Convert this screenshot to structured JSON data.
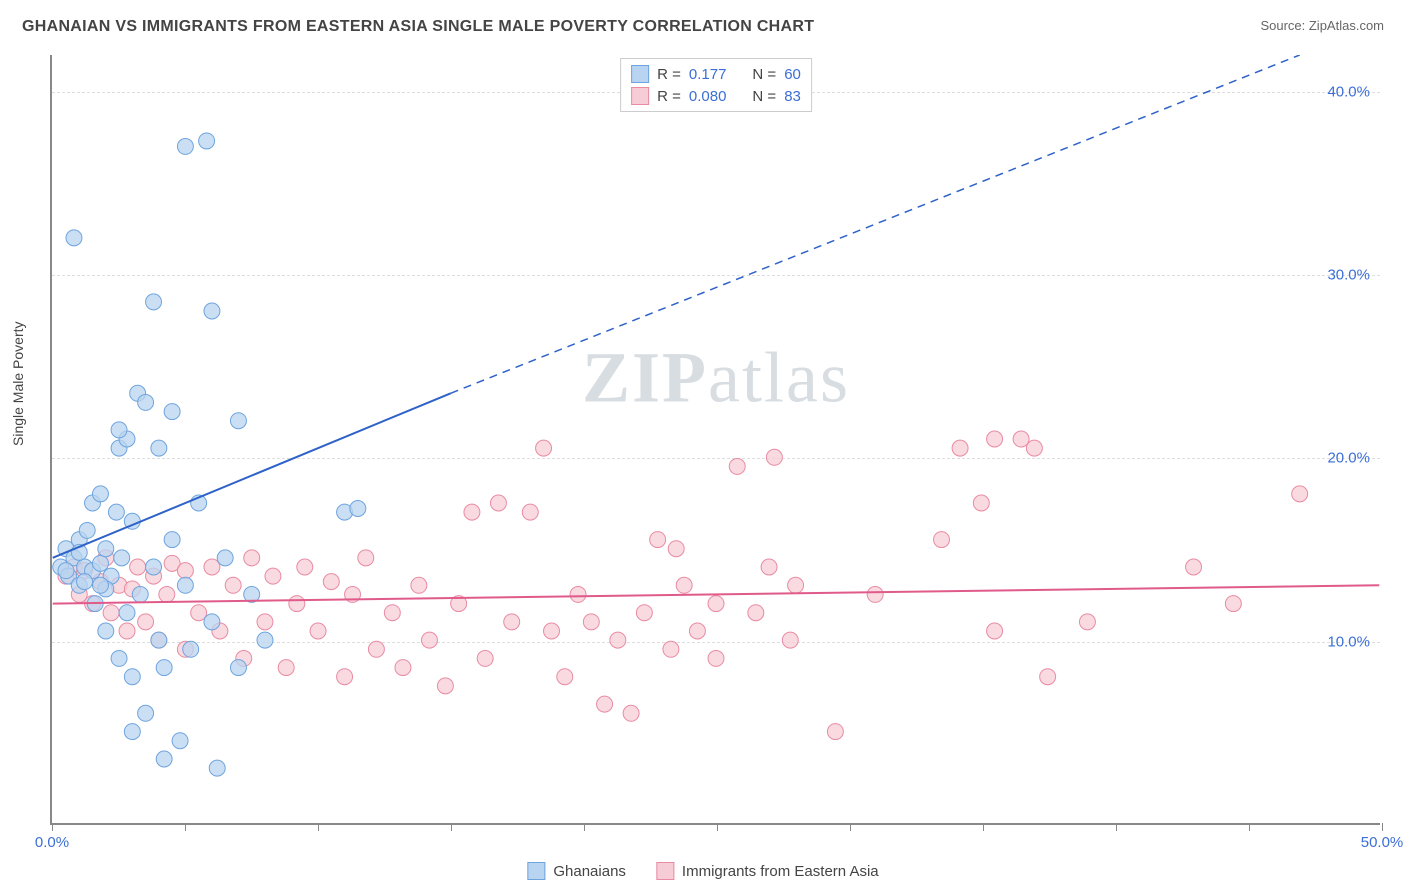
{
  "title": "GHANAIAN VS IMMIGRANTS FROM EASTERN ASIA SINGLE MALE POVERTY CORRELATION CHART",
  "source": "Source: ZipAtlas.com",
  "ylabel": "Single Male Poverty",
  "watermark_bold": "ZIP",
  "watermark_rest": "atlas",
  "chart": {
    "type": "scatter",
    "xlim": [
      0,
      50
    ],
    "ylim": [
      0,
      42
    ],
    "yticks": [
      10,
      20,
      30,
      40
    ],
    "ytick_labels": [
      "10.0%",
      "20.0%",
      "30.0%",
      "40.0%"
    ],
    "xticks": [
      0,
      5,
      10,
      15,
      20,
      25,
      30,
      35,
      40,
      45,
      50
    ],
    "xtick_labels": {
      "0": "0.0%",
      "50": "50.0%"
    },
    "grid_color": "#e4e4e4",
    "axis_color": "#888888",
    "background_color": "#ffffff",
    "series": [
      {
        "name": "Ghanaians",
        "color_fill": "#b9d4f0",
        "color_stroke": "#6ea4de",
        "marker_radius": 8,
        "R": "0.177",
        "N": "60",
        "trend": {
          "x1": 0,
          "y1": 14.5,
          "x2_solid": 15,
          "y2_solid": 23.5,
          "x2_dash": 47,
          "y2_dash": 42,
          "color": "#2e62c9",
          "width": 2
        },
        "points": [
          [
            0.3,
            14.0
          ],
          [
            0.5,
            15.0
          ],
          [
            0.6,
            13.5
          ],
          [
            0.8,
            14.5
          ],
          [
            1.0,
            13.0
          ],
          [
            1.0,
            15.5
          ],
          [
            1.2,
            14.0
          ],
          [
            1.3,
            16.0
          ],
          [
            1.5,
            13.8
          ],
          [
            1.5,
            17.5
          ],
          [
            1.6,
            12.0
          ],
          [
            1.8,
            14.2
          ],
          [
            1.8,
            18.0
          ],
          [
            2.0,
            10.5
          ],
          [
            2.0,
            15.0
          ],
          [
            2.2,
            13.5
          ],
          [
            2.4,
            17.0
          ],
          [
            2.5,
            9.0
          ],
          [
            2.5,
            20.5
          ],
          [
            2.6,
            14.5
          ],
          [
            2.8,
            11.5
          ],
          [
            2.8,
            21.0
          ],
          [
            3.0,
            8.0
          ],
          [
            3.0,
            16.5
          ],
          [
            3.2,
            23.5
          ],
          [
            3.3,
            12.5
          ],
          [
            3.5,
            23.0
          ],
          [
            3.5,
            6.0
          ],
          [
            3.8,
            14.0
          ],
          [
            3.8,
            28.5
          ],
          [
            4.0,
            10.0
          ],
          [
            4.0,
            20.5
          ],
          [
            4.2,
            8.5
          ],
          [
            4.5,
            15.5
          ],
          [
            4.5,
            22.5
          ],
          [
            4.8,
            4.5
          ],
          [
            5.0,
            13.0
          ],
          [
            5.0,
            37.0
          ],
          [
            5.2,
            9.5
          ],
          [
            5.5,
            17.5
          ],
          [
            5.8,
            37.3
          ],
          [
            6.0,
            11.0
          ],
          [
            6.0,
            28.0
          ],
          [
            6.2,
            3.0
          ],
          [
            6.5,
            14.5
          ],
          [
            7.0,
            8.5
          ],
          [
            7.0,
            22.0
          ],
          [
            7.5,
            12.5
          ],
          [
            8.0,
            10.0
          ],
          [
            0.8,
            32.0
          ],
          [
            2.5,
            21.5
          ],
          [
            2.0,
            12.8
          ],
          [
            1.0,
            14.8
          ],
          [
            1.2,
            13.2
          ],
          [
            0.5,
            13.8
          ],
          [
            1.8,
            13.0
          ],
          [
            11.0,
            17.0
          ],
          [
            11.5,
            17.2
          ],
          [
            3.0,
            5.0
          ],
          [
            4.2,
            3.5
          ]
        ]
      },
      {
        "name": "Immigants_EA",
        "label": "Immigrants from Eastern Asia",
        "color_fill": "#f6cdd6",
        "color_stroke": "#e98ba3",
        "marker_radius": 8,
        "R": "0.080",
        "N": "83",
        "trend": {
          "x1": 0,
          "y1": 12.0,
          "x2_solid": 50,
          "y2_solid": 13.0,
          "color": "#e05a8a",
          "width": 2
        },
        "points": [
          [
            0.5,
            13.5
          ],
          [
            0.8,
            14.0
          ],
          [
            1.0,
            12.5
          ],
          [
            1.2,
            13.8
          ],
          [
            1.5,
            12.0
          ],
          [
            1.8,
            13.2
          ],
          [
            2.0,
            14.5
          ],
          [
            2.2,
            11.5
          ],
          [
            2.5,
            13.0
          ],
          [
            2.8,
            10.5
          ],
          [
            3.0,
            12.8
          ],
          [
            3.2,
            14.0
          ],
          [
            3.5,
            11.0
          ],
          [
            3.8,
            13.5
          ],
          [
            4.0,
            10.0
          ],
          [
            4.3,
            12.5
          ],
          [
            4.5,
            14.2
          ],
          [
            5.0,
            9.5
          ],
          [
            5.0,
            13.8
          ],
          [
            5.5,
            11.5
          ],
          [
            6.0,
            14.0
          ],
          [
            6.3,
            10.5
          ],
          [
            6.8,
            13.0
          ],
          [
            7.2,
            9.0
          ],
          [
            7.5,
            14.5
          ],
          [
            8.0,
            11.0
          ],
          [
            8.3,
            13.5
          ],
          [
            8.8,
            8.5
          ],
          [
            9.2,
            12.0
          ],
          [
            9.5,
            14.0
          ],
          [
            10.0,
            10.5
          ],
          [
            10.5,
            13.2
          ],
          [
            11.0,
            8.0
          ],
          [
            11.3,
            12.5
          ],
          [
            11.8,
            14.5
          ],
          [
            12.2,
            9.5
          ],
          [
            12.8,
            11.5
          ],
          [
            13.2,
            8.5
          ],
          [
            13.8,
            13.0
          ],
          [
            14.2,
            10.0
          ],
          [
            14.8,
            7.5
          ],
          [
            15.3,
            12.0
          ],
          [
            15.8,
            17.0
          ],
          [
            16.3,
            9.0
          ],
          [
            16.8,
            17.5
          ],
          [
            17.3,
            11.0
          ],
          [
            18.5,
            20.5
          ],
          [
            18.0,
            17.0
          ],
          [
            18.8,
            10.5
          ],
          [
            19.3,
            8.0
          ],
          [
            19.8,
            12.5
          ],
          [
            20.3,
            11.0
          ],
          [
            20.8,
            6.5
          ],
          [
            21.3,
            10.0
          ],
          [
            21.8,
            6.0
          ],
          [
            22.3,
            11.5
          ],
          [
            22.8,
            15.5
          ],
          [
            23.3,
            9.5
          ],
          [
            23.5,
            15.0
          ],
          [
            23.8,
            13.0
          ],
          [
            24.3,
            10.5
          ],
          [
            25.0,
            12.0
          ],
          [
            25.0,
            9.0
          ],
          [
            25.8,
            19.5
          ],
          [
            26.5,
            11.5
          ],
          [
            27.0,
            14.0
          ],
          [
            27.2,
            20.0
          ],
          [
            27.8,
            10.0
          ],
          [
            28.0,
            13.0
          ],
          [
            29.5,
            5.0
          ],
          [
            31.0,
            12.5
          ],
          [
            33.5,
            15.5
          ],
          [
            34.2,
            20.5
          ],
          [
            35.0,
            17.5
          ],
          [
            35.5,
            10.5
          ],
          [
            37.0,
            20.5
          ],
          [
            37.5,
            8.0
          ],
          [
            39.0,
            11.0
          ],
          [
            43.0,
            14.0
          ],
          [
            44.5,
            12.0
          ],
          [
            47.0,
            18.0
          ],
          [
            36.5,
            21.0
          ],
          [
            35.5,
            21.0
          ]
        ]
      }
    ]
  },
  "legend_top": {
    "r_label": "R  =",
    "n_label": "N  ="
  },
  "legend_bottom": [
    {
      "label": "Ghanaians",
      "fill": "#b9d4f0",
      "stroke": "#6ea4de"
    },
    {
      "label": "Immigrants from Eastern Asia",
      "fill": "#f6cdd6",
      "stroke": "#e98ba3"
    }
  ]
}
